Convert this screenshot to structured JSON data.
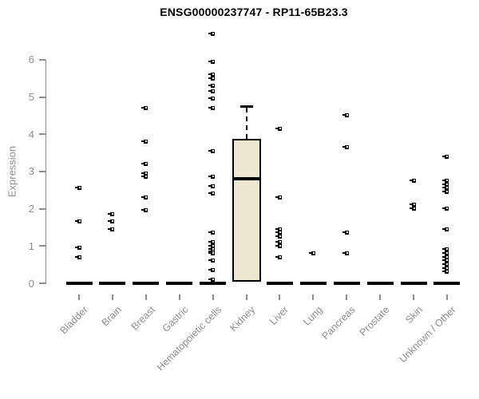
{
  "title": "ENSG00000237747 - RP11-65B23.3",
  "colors": {
    "axis": "#8c8c8c",
    "tick_label": "#8c8c8c",
    "title": "#000000",
    "point": "#000000",
    "zero_bar": "#000000",
    "box_fill": "#ece7ce",
    "box_border": "#000000",
    "background": "#ffffff"
  },
  "chart_data": {
    "type": "scatter",
    "subtype": "strip-plot-with-boxplot",
    "title": "ENSG00000237747 - RP11-65B23.3",
    "xlabel": "",
    "ylabel": "Expression",
    "ylim": [
      0,
      6.8
    ],
    "yticks": [
      0,
      1,
      2,
      3,
      4,
      5,
      6
    ],
    "grid": false,
    "legend": "none",
    "categories": [
      "Bladder",
      "Brain",
      "Breast",
      "Gastric",
      "Hematopoietic cells",
      "Kidney",
      "Liver",
      "Lung",
      "Pancreas",
      "Prostate",
      "Skin",
      "Unknown / Other"
    ],
    "series": [
      {
        "category": "Bladder",
        "zero_bar": true,
        "points": [
          2.55,
          1.65,
          0.95,
          0.7
        ]
      },
      {
        "category": "Brain",
        "zero_bar": true,
        "points": [
          1.85,
          1.65,
          1.45
        ]
      },
      {
        "category": "Breast",
        "zero_bar": true,
        "points": [
          4.7,
          3.8,
          3.2,
          2.95,
          2.85,
          2.3,
          1.95
        ]
      },
      {
        "category": "Gastric",
        "zero_bar": true,
        "points": []
      },
      {
        "category": "Hematopoietic cells",
        "zero_bar": true,
        "points": [
          6.7,
          5.95,
          5.6,
          5.5,
          5.3,
          5.15,
          4.95,
          4.7,
          3.55,
          2.85,
          2.6,
          2.4,
          1.35,
          1.1,
          1.0,
          0.9,
          0.85,
          0.8,
          0.6,
          0.35,
          0.1
        ]
      },
      {
        "category": "Kidney",
        "zero_bar": false,
        "points": [],
        "box": {
          "q1": 0.05,
          "median": 2.8,
          "q3": 3.88,
          "whisker_high": 4.75
        }
      },
      {
        "category": "Liver",
        "zero_bar": true,
        "points": [
          4.15,
          2.3,
          1.45,
          1.35,
          1.25,
          1.1,
          1.0,
          0.7
        ]
      },
      {
        "category": "Lung",
        "zero_bar": true,
        "points": [
          0.8
        ]
      },
      {
        "category": "Pancreas",
        "zero_bar": true,
        "points": [
          4.5,
          3.65,
          1.35,
          0.8
        ]
      },
      {
        "category": "Prostate",
        "zero_bar": true,
        "points": []
      },
      {
        "category": "Skin",
        "zero_bar": true,
        "points": [
          2.75,
          2.1,
          2.0
        ]
      },
      {
        "category": "Unknown / Other",
        "zero_bar": true,
        "points": [
          3.4,
          2.75,
          2.65,
          2.55,
          2.45,
          2.0,
          1.45,
          0.9,
          0.8,
          0.7,
          0.6,
          0.5,
          0.4,
          0.3
        ]
      }
    ]
  }
}
